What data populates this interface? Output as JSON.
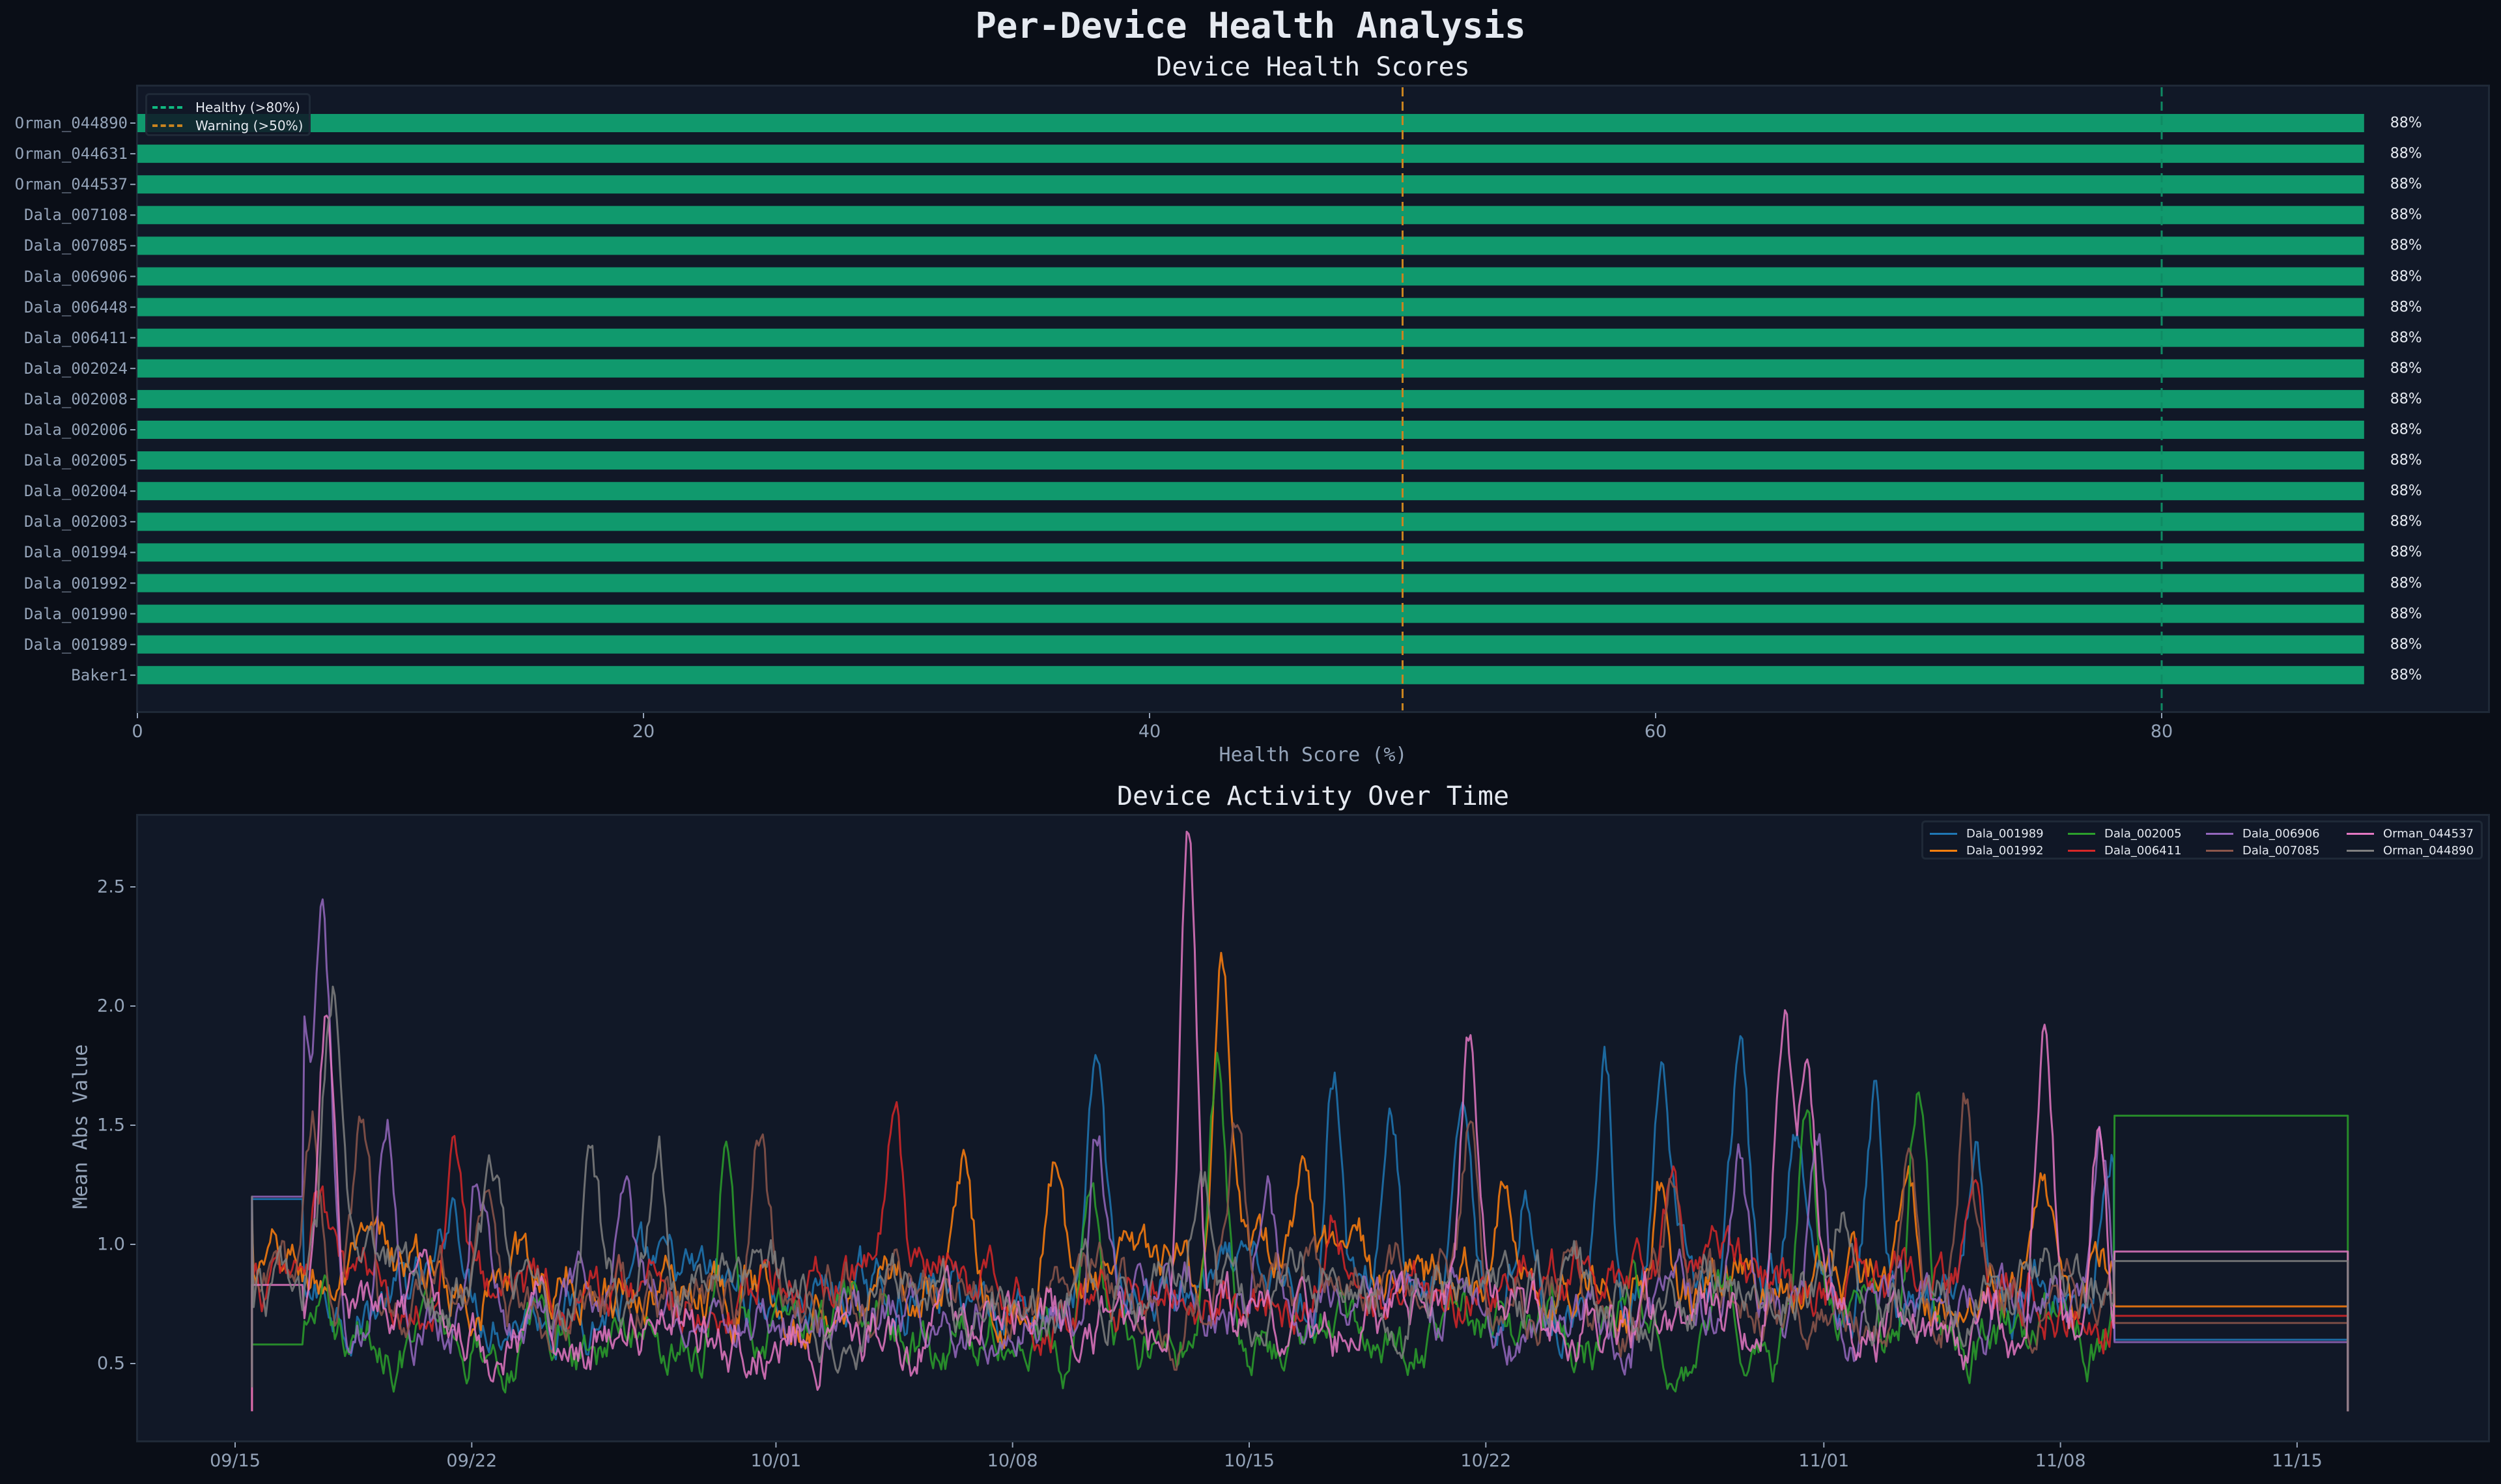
{
  "figure": {
    "title": "Per-Device Health Analysis"
  },
  "colors": {
    "page_bg": "#0a0e17",
    "panel_bg": "#111827",
    "panel_border": "#1f2937",
    "bar": "#10996d",
    "healthy_line": "#10b981",
    "warning_line": "#f59e0b",
    "text": "#e5e9f0",
    "muted_text": "#94a3b8"
  },
  "health_chart": {
    "title": "Device Health Scores",
    "xlabel": "Health Score (%)",
    "x_ticks": [
      "0",
      "20",
      "40",
      "60",
      "80"
    ],
    "legend": [
      {
        "label": "Healthy (>80%)",
        "color": "#10b981"
      },
      {
        "label": "Warning (>50%)",
        "color": "#f59e0b"
      }
    ]
  },
  "activity_chart": {
    "title": "Device Activity Over Time",
    "ylabel": "Mean Abs Value",
    "y_ticks": [
      "0.5",
      "1.0",
      "1.5",
      "2.0",
      "2.5"
    ],
    "x_ticks": [
      "09/15",
      "09/22",
      "10/01",
      "10/08",
      "10/15",
      "10/22",
      "11/01",
      "11/08",
      "11/15"
    ]
  },
  "chart_data": [
    {
      "type": "bar",
      "orientation": "horizontal",
      "title": "Device Health Scores",
      "xlabel": "Health Score (%)",
      "ylabel": "",
      "xlim": [
        0,
        93
      ],
      "categories": [
        "Orman_044890",
        "Orman_044631",
        "Orman_044537",
        "Dala_007108",
        "Dala_007085",
        "Dala_006906",
        "Dala_006448",
        "Dala_006411",
        "Dala_002024",
        "Dala_002008",
        "Dala_002006",
        "Dala_002005",
        "Dala_002004",
        "Dala_002003",
        "Dala_001994",
        "Dala_001992",
        "Dala_001990",
        "Dala_001989",
        "Baker1"
      ],
      "values": [
        88,
        88,
        88,
        88,
        88,
        88,
        88,
        88,
        88,
        88,
        88,
        88,
        88,
        88,
        88,
        88,
        88,
        88,
        88
      ],
      "value_labels": [
        "88%",
        "88%",
        "88%",
        "88%",
        "88%",
        "88%",
        "88%",
        "88%",
        "88%",
        "88%",
        "88%",
        "88%",
        "88%",
        "88%",
        "88%",
        "88%",
        "88%",
        "88%",
        "88%"
      ],
      "reference_lines": [
        {
          "x": 80,
          "label": "Healthy (>80%)",
          "style": "dashed",
          "color": "#10b981"
        },
        {
          "x": 50,
          "label": "Warning (>50%)",
          "style": "dashed",
          "color": "#f59e0b"
        }
      ],
      "legend_position": "upper left",
      "grid": false
    },
    {
      "type": "line",
      "title": "Device Activity Over Time",
      "xlabel": "",
      "ylabel": "Mean Abs Value",
      "ylim": [
        0.2,
        2.8
      ],
      "x_range": [
        "09/11",
        "11/20"
      ],
      "x_ticks": [
        "09/15",
        "09/22",
        "10/01",
        "10/08",
        "10/15",
        "10/22",
        "11/01",
        "11/08",
        "11/15"
      ],
      "legend_position": "upper right",
      "legend_columns": 4,
      "grid": false,
      "series": [
        {
          "name": "Dala_001989",
          "color": "#1f77b4",
          "start_day": 15.5,
          "end_day": 77.5,
          "flat_start": 1.19,
          "flat_end": 0.6,
          "base": 0.78,
          "peaks": [
            [
              21.5,
              1.18
            ],
            [
              40.5,
              1.7
            ],
            [
              47.5,
              1.78
            ],
            [
              49.2,
              1.58
            ],
            [
              51.4,
              1.52
            ],
            [
              53.2,
              1.25
            ],
            [
              55.5,
              1.76
            ],
            [
              57.2,
              1.55
            ],
            [
              59.5,
              1.72
            ],
            [
              61.2,
              1.43
            ],
            [
              63.5,
              1.65
            ],
            [
              66.5,
              1.44
            ],
            [
              70.5,
              1.48
            ],
            [
              74.5,
              1.5
            ],
            [
              76.8,
              1.45
            ]
          ]
        },
        {
          "name": "Dala_001992",
          "color": "#ff7f0e",
          "start_day": 15.5,
          "end_day": 77.5,
          "flat_start": 1.1,
          "flat_end": 0.74,
          "base": 0.85,
          "peaks": [
            [
              36.5,
              1.35
            ],
            [
              39.2,
              1.3
            ],
            [
              44.2,
              2.08
            ],
            [
              46.5,
              1.25
            ],
            [
              52.5,
              1.35
            ],
            [
              57.2,
              1.3
            ],
            [
              64.5,
              1.2
            ],
            [
              68.5,
              1.25
            ],
            [
              72.5,
              1.2
            ]
          ]
        },
        {
          "name": "Dala_002005",
          "color": "#2ca02c",
          "start_day": 15.5,
          "end_day": 77.5,
          "flat_start": 0.58,
          "flat_end": 1.54,
          "base": 0.62,
          "peaks": [
            [
              29.5,
              1.45
            ],
            [
              40.3,
              1.42
            ],
            [
              44.1,
              1.72
            ],
            [
              61.5,
              1.46
            ],
            [
              64.8,
              1.62
            ],
            [
              71.5,
              1.56
            ],
            [
              73.2,
              1.58
            ],
            [
              75.3,
              1.73
            ]
          ]
        },
        {
          "name": "Dala_006411",
          "color": "#d62728",
          "start_day": 15.5,
          "end_day": 77.5,
          "flat_start": 0.98,
          "flat_end": 0.7,
          "base": 0.82,
          "peaks": [
            [
              17.5,
              1.18
            ],
            [
              21.5,
              1.45
            ],
            [
              34.5,
              1.37
            ],
            [
              47.5,
              1.3
            ],
            [
              57.5,
              1.24
            ],
            [
              66.5,
              1.12
            ],
            [
              72.5,
              1.05
            ],
            [
              74.8,
              1.16
            ]
          ]
        },
        {
          "name": "Dala_006906",
          "color": "#9467bd",
          "start_day": 15.5,
          "end_day": 77.5,
          "flat_start": 1.2,
          "flat_end": 0.59,
          "base": 0.72,
          "peaks": [
            [
              16.9,
              1.93
            ],
            [
              17.6,
              2.27
            ],
            [
              19.5,
              1.55
            ],
            [
              22.2,
              1.4
            ],
            [
              26.5,
              1.22
            ],
            [
              40.5,
              1.5
            ],
            [
              45.5,
              1.36
            ],
            [
              59.5,
              1.46
            ],
            [
              61.8,
              1.32
            ],
            [
              70.2,
              1.41
            ],
            [
              73.2,
              1.57
            ]
          ]
        },
        {
          "name": "Dala_007085",
          "color": "#8c564b",
          "start_day": 15.5,
          "end_day": 77.5,
          "flat_start": 0.8,
          "flat_end": 0.67,
          "base": 0.78,
          "peaks": [
            [
              17.3,
              1.52
            ],
            [
              18.8,
              1.52
            ],
            [
              22.5,
              1.35
            ],
            [
              30.5,
              1.38
            ],
            [
              44.6,
              1.55
            ],
            [
              51.6,
              1.53
            ],
            [
              57.6,
              1.36
            ],
            [
              64.5,
              1.5
            ],
            [
              66.2,
              1.62
            ],
            [
              72.2,
              1.47
            ],
            [
              73.7,
              1.62
            ],
            [
              75.5,
              1.35
            ]
          ]
        },
        {
          "name": "Orman_044537",
          "color": "#e377c2",
          "start_day": 15.5,
          "end_day": 77.5,
          "flat_start": 0.83,
          "flat_end": 0.97,
          "base": 0.66,
          "peaks": [
            [
              17.7,
              1.9
            ],
            [
              43.2,
              2.68
            ],
            [
              51.5,
              1.8
            ],
            [
              60.8,
              2.01
            ],
            [
              61.5,
              1.72
            ],
            [
              68.5,
              1.87
            ],
            [
              70.1,
              1.66
            ]
          ]
        },
        {
          "name": "Orman_044890",
          "color": "#7f7f7f",
          "start_day": 15.5,
          "end_day": 77.5,
          "flat_start": 1.2,
          "flat_end": 0.93,
          "base": 0.8,
          "peaks": [
            [
              17.9,
              1.99
            ],
            [
              22.6,
              1.26
            ],
            [
              25.5,
              1.31
            ],
            [
              27.5,
              1.42
            ],
            [
              43.6,
              1.43
            ],
            [
              62.5,
              1.1
            ],
            [
              73.5,
              1.32
            ],
            [
              74.8,
              1.22
            ]
          ]
        }
      ]
    }
  ]
}
